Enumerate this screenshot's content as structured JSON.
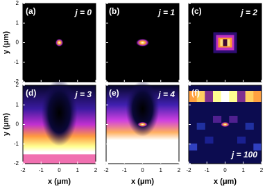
{
  "panels": [
    {
      "label": "(a)",
      "j_label": "j = 0"
    },
    {
      "label": "(b)",
      "j_label": "j = 1"
    },
    {
      "label": "(c)",
      "j_label": "j = 2"
    },
    {
      "label": "(d)",
      "j_label": "j = 3"
    },
    {
      "label": "(e)",
      "j_label": "j = 4"
    },
    {
      "label": "(f)",
      "j_label": "j = 100"
    }
  ],
  "x_axis": {
    "label": "x (μm)",
    "ticks": [
      -2,
      -1,
      0,
      1,
      2
    ]
  },
  "y_axis": {
    "label": "y (μm)",
    "ticks": [
      2,
      1,
      0,
      -1,
      -2
    ]
  }
}
